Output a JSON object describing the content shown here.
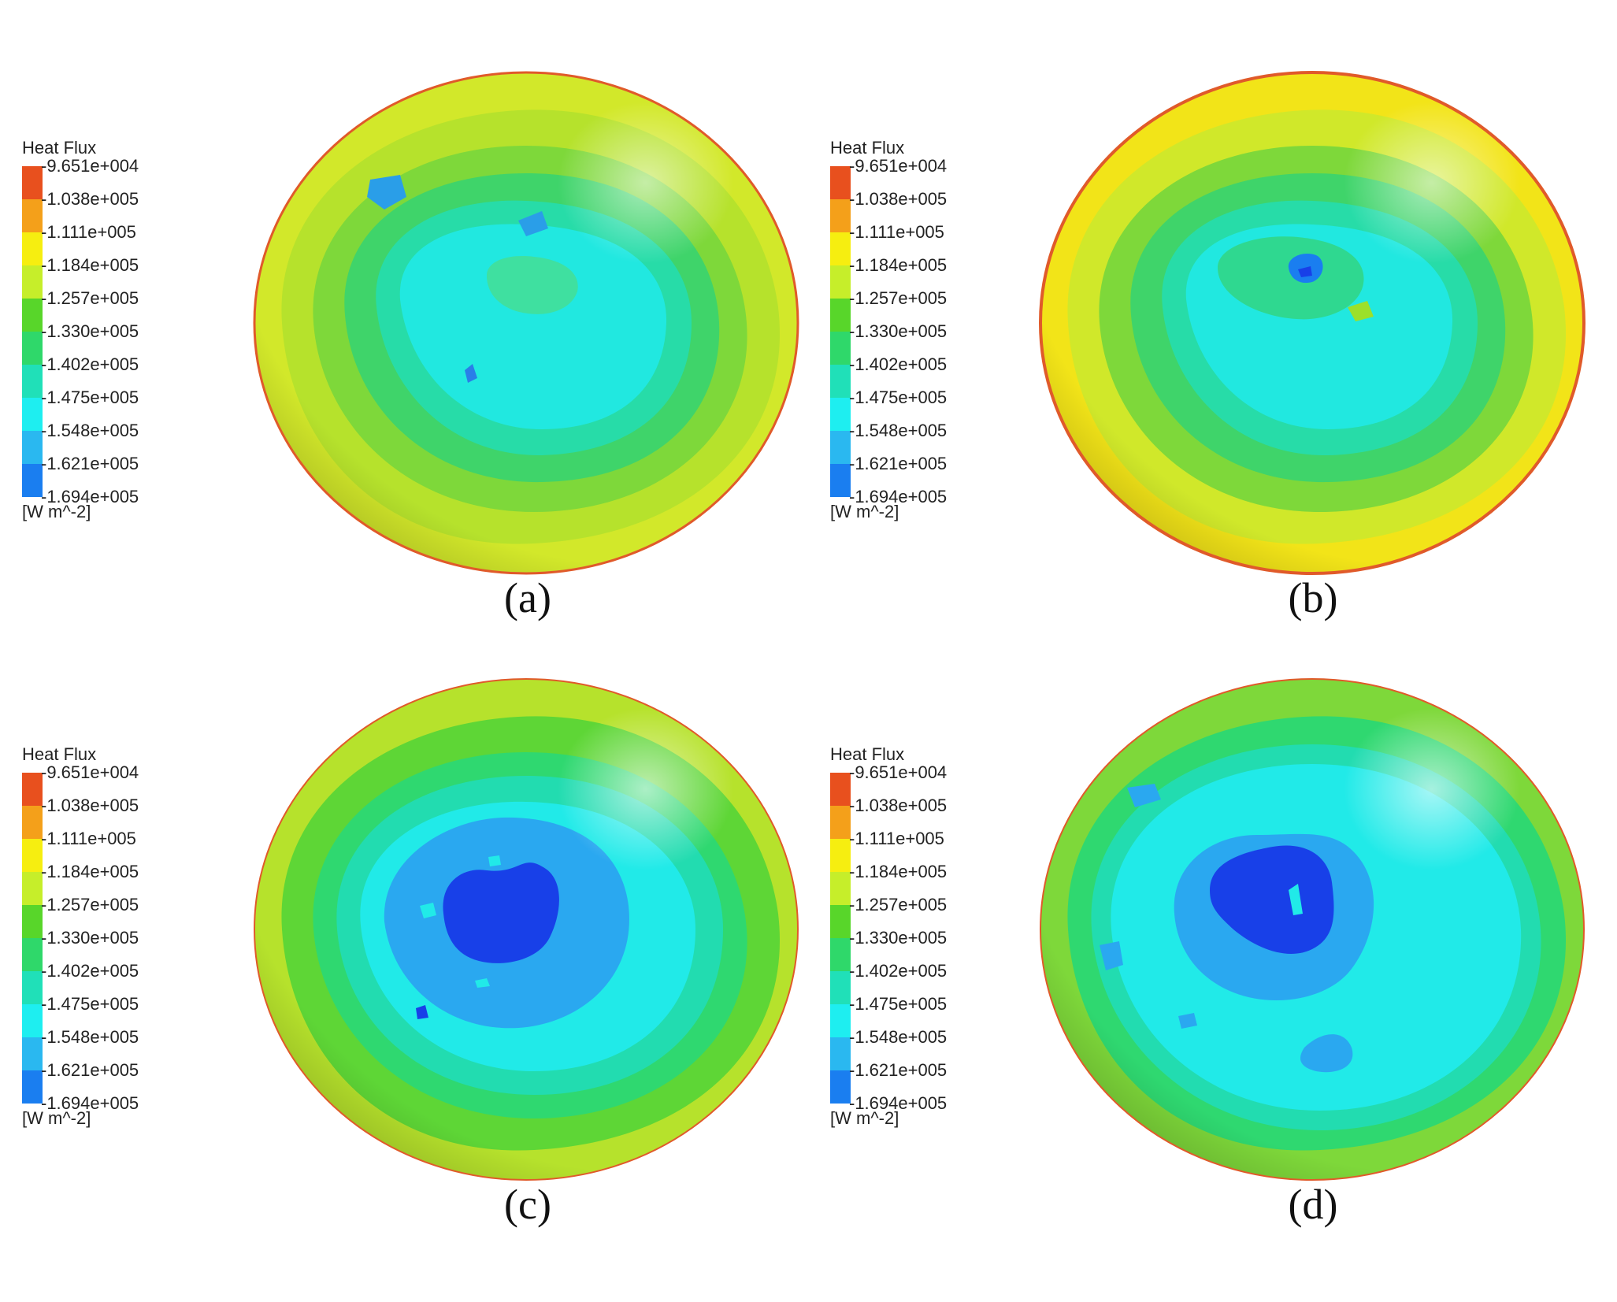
{
  "legend": {
    "title": "Heat Flux",
    "unit": "[W m^-2]",
    "ticks": [
      "-9.651e+004",
      "-1.038e+005",
      "-1.111e+005",
      "-1.184e+005",
      "-1.257e+005",
      "-1.330e+005",
      "-1.402e+005",
      "-1.475e+005",
      "-1.548e+005",
      "-1.621e+005",
      "-1.694e+005"
    ],
    "colors": [
      "#e8501e",
      "#f4a01a",
      "#f6ee10",
      "#c6ee2a",
      "#58d62a",
      "#2fd86a",
      "#20e0b8",
      "#1eeef0",
      "#2ab8f0",
      "#1a7ef0",
      "#1840e8"
    ]
  },
  "panels": [
    {
      "caption": "(a)"
    },
    {
      "caption": "(b)"
    },
    {
      "caption": "(c)"
    },
    {
      "caption": "(d)"
    }
  ]
}
